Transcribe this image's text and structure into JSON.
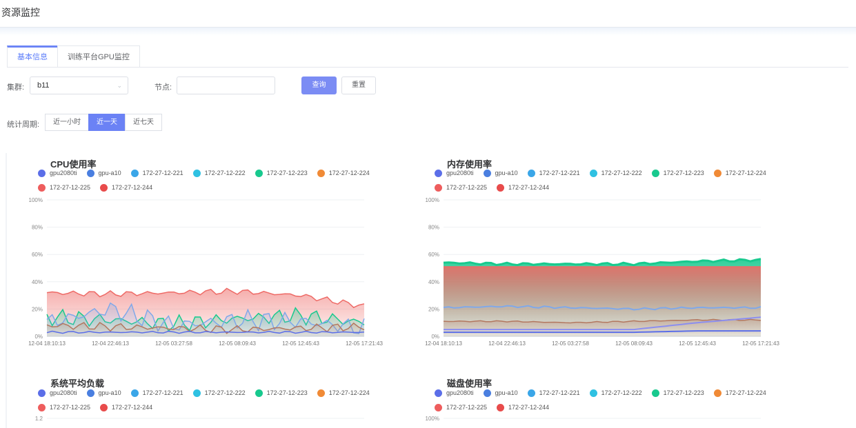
{
  "header": {
    "title": "资源监控"
  },
  "tabs": [
    {
      "label": "基本信息",
      "active": true
    },
    {
      "label": "训练平台GPU监控",
      "active": false
    }
  ],
  "filters": {
    "cluster_label": "集群:",
    "cluster_value": "b11",
    "node_label": "节点:",
    "node_value": "",
    "query_button": "查询",
    "reset_button": "重置"
  },
  "range": {
    "label": "统计周期:",
    "options": [
      "近一小时",
      "近一天",
      "近七天"
    ],
    "selected": "近一天"
  },
  "colors": {
    "accent": "#6b82f5",
    "series": [
      "#5b6ee8",
      "#4a7fe0",
      "#3aa6e8",
      "#2fc1e2",
      "#18c98e",
      "#f08a36",
      "#ee5d5d",
      "#e84b4b"
    ]
  },
  "legend_names": [
    "gpu2080ti",
    "gpu-a10",
    "172-27-12-221",
    "172-27-12-222",
    "172-27-12-223",
    "172-27-12-224",
    "172-27-12-225",
    "172-27-12-244"
  ],
  "charts": [
    {
      "title": "CPU使用率",
      "y_ticks": [
        "100%",
        "80%",
        "60%",
        "40%",
        "20%",
        "0%"
      ],
      "x_ticks": [
        "12-04 18:10:13",
        "12-04 22:46:13",
        "12-05 03:27:58",
        "12-05 08:09:43",
        "12-05 12:45:43",
        "12-05 17:21:43"
      ]
    },
    {
      "title": "内存使用率",
      "y_ticks": [
        "100%",
        "80%",
        "60%",
        "40%",
        "20%",
        "0%"
      ],
      "x_ticks": [
        "12-04 18:10:13",
        "12-04 22:46:13",
        "12-05 03:27:58",
        "12-05 08:09:43",
        "12-05 12:45:43",
        "12-05 17:21:43"
      ]
    },
    {
      "title": "系统平均负载",
      "y_ticks": [
        "1.2"
      ],
      "x_ticks": []
    },
    {
      "title": "磁盘使用率",
      "y_ticks": [
        "100%"
      ],
      "x_ticks": []
    }
  ],
  "chart_data": [
    {
      "type": "area",
      "title": "CPU使用率",
      "ylim": [
        0,
        100
      ],
      "x": [
        "12-04 18:10:13",
        "12-04 22:46:13",
        "12-05 03:27:58",
        "12-05 08:09:43",
        "12-05 12:45:43",
        "12-05 17:21:43"
      ],
      "series": [
        {
          "name": "172-27-12-244",
          "values": [
            32,
            31,
            32,
            33,
            30,
            22
          ]
        },
        {
          "name": "172-27-12-223",
          "values": [
            14,
            12,
            9,
            13,
            15,
            10
          ]
        },
        {
          "name": "172-27-12-221",
          "values": [
            10,
            20,
            8,
            12,
            11,
            6
          ]
        },
        {
          "name": "172-27-12-225",
          "values": [
            8,
            7,
            6,
            5,
            6,
            7
          ]
        },
        {
          "name": "gpu2080ti",
          "values": [
            3,
            3,
            3,
            3,
            3,
            3
          ]
        }
      ]
    },
    {
      "type": "area",
      "title": "内存使用率",
      "ylim": [
        0,
        100
      ],
      "x": [
        "12-04 18:10:13",
        "12-04 22:46:13",
        "12-05 03:27:58",
        "12-05 08:09:43",
        "12-05 12:45:43",
        "12-05 17:21:43"
      ],
      "series": [
        {
          "name": "172-27-12-223",
          "values": [
            54,
            53,
            53,
            53,
            55,
            56
          ]
        },
        {
          "name": "172-27-12-244",
          "values": [
            51,
            51,
            51,
            51,
            51,
            51
          ]
        },
        {
          "name": "172-27-12-221",
          "values": [
            21,
            22,
            21,
            20,
            21,
            21
          ]
        },
        {
          "name": "172-27-12-225",
          "values": [
            11,
            11,
            10,
            11,
            12,
            12
          ]
        },
        {
          "name": "gpu-a10",
          "values": [
            5,
            5,
            5,
            5,
            10,
            14
          ]
        },
        {
          "name": "gpu2080ti",
          "values": [
            3,
            3,
            3,
            3,
            4,
            4
          ]
        }
      ]
    }
  ]
}
